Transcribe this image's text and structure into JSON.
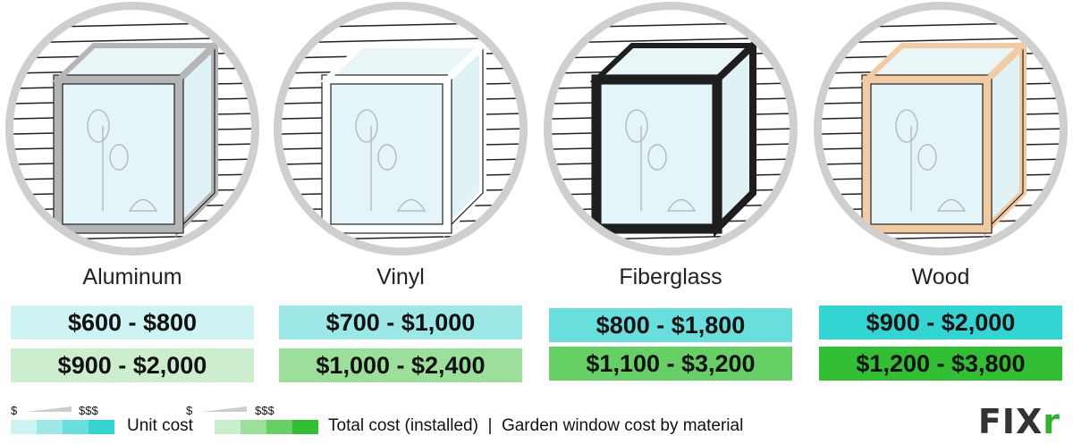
{
  "materials": [
    {
      "name": "Aluminum",
      "unit_cost": "$600 - $800",
      "total_cost": "$900 - $2,000",
      "frame_color": "#b5b5b5",
      "unit_color": "#cdf3f2",
      "total_color": "#cdeecd"
    },
    {
      "name": "Vinyl",
      "unit_cost": "$700 - $1,000",
      "total_cost": "$1,000 - $2,400",
      "frame_color": "#ffffff",
      "unit_color": "#9be8e6",
      "total_color": "#9bdf9b"
    },
    {
      "name": "Fiberglass",
      "unit_cost": "$800 - $1,800",
      "total_cost": "$1,100 - $3,200",
      "frame_color": "#1e1e1e",
      "unit_color": "#68dfdd",
      "total_color": "#66cf66"
    },
    {
      "name": "Wood",
      "unit_cost": "$900 - $2,000",
      "total_cost": "$1,200 - $3,800",
      "frame_color": "#f2cba3",
      "unit_color": "#33d5d3",
      "total_color": "#33bf33"
    }
  ],
  "legend": {
    "low": "$",
    "high": "$$$",
    "unit_label": "Unit cost",
    "total_label": "Total cost (installed)  |  Garden window cost by material",
    "unit_scale": [
      "#cdf3f2",
      "#9be8e6",
      "#68dfdd",
      "#33d5d3"
    ],
    "total_scale": [
      "#cdeecd",
      "#9bdf9b",
      "#66cf66",
      "#33bf33"
    ]
  },
  "logo": {
    "text": "FIX",
    "accent": "r",
    "accent_color": "#2db52d"
  }
}
